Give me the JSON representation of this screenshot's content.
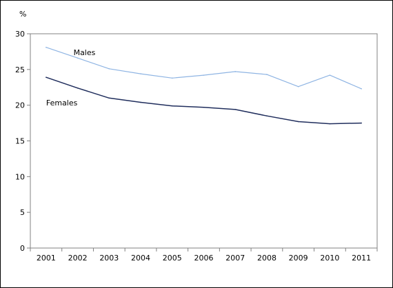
{
  "chart_data": {
    "type": "line",
    "title": "",
    "xlabel": "",
    "ylabel": "%",
    "ylim": [
      0,
      30
    ],
    "yticks": [
      0,
      5,
      10,
      15,
      20,
      25,
      30
    ],
    "categories": [
      "2001",
      "2002",
      "2003",
      "2004",
      "2005",
      "2006",
      "2007",
      "2008",
      "2009",
      "2010",
      "2011"
    ],
    "grid": false,
    "legend": "inline labels",
    "series": [
      {
        "name": "Males",
        "color": "#8eb4e3",
        "values": [
          28.1,
          26.6,
          25.1,
          24.4,
          23.8,
          24.2,
          24.7,
          24.3,
          22.6,
          24.2,
          22.3
        ]
      },
      {
        "name": "Females",
        "color": "#1f2d5c",
        "values": [
          23.9,
          22.4,
          21.0,
          20.4,
          19.9,
          19.7,
          19.4,
          18.5,
          17.7,
          17.4,
          17.5
        ]
      }
    ]
  }
}
